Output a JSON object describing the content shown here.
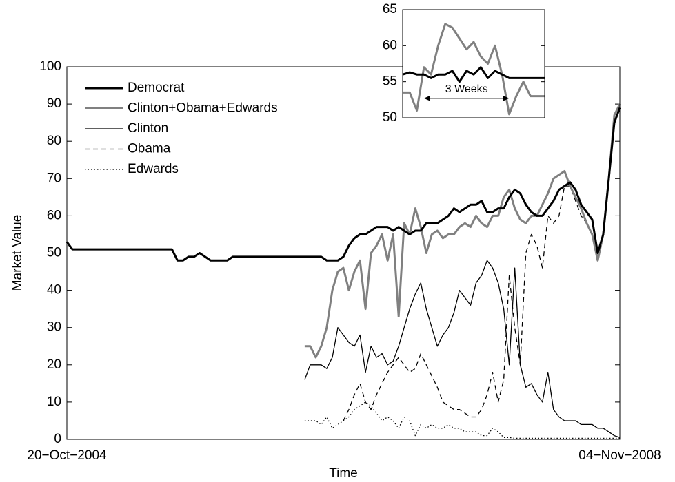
{
  "chart_data": [
    {
      "type": "line",
      "xlabel": "Time",
      "ylabel": "Market Value",
      "x": [
        0,
        1,
        2,
        3,
        4,
        5,
        6,
        7,
        8,
        9,
        10,
        11,
        12,
        13,
        14,
        15,
        16,
        17,
        18,
        19,
        20,
        21,
        22,
        23,
        24,
        25,
        26,
        27,
        28,
        29,
        30,
        31,
        32,
        33,
        34,
        35,
        36,
        37,
        38,
        39,
        40,
        41,
        42,
        43,
        44,
        45,
        46,
        47,
        48,
        49,
        50,
        51,
        52,
        53,
        54,
        55,
        56,
        57,
        58,
        59,
        60,
        61,
        62,
        63,
        64,
        65,
        66,
        67,
        68,
        69,
        70,
        71,
        72,
        73,
        74,
        75,
        76,
        77,
        78,
        79,
        80,
        81,
        82,
        83,
        84,
        85,
        86,
        87,
        88,
        89,
        90,
        91,
        92,
        93,
        94,
        95,
        96,
        97,
        98,
        99,
        100
      ],
      "xlim": [
        0,
        100
      ],
      "xticks": [
        {
          "value": 0,
          "label": "20−Oct−2004"
        },
        {
          "value": 100,
          "label": "04−Nov−2008"
        }
      ],
      "ylim": [
        0,
        100
      ],
      "yticks": [
        0,
        10,
        20,
        30,
        40,
        50,
        60,
        70,
        80,
        90,
        100
      ],
      "legend": "upper left",
      "series": [
        {
          "name": "Democrat",
          "color": "#000000",
          "linestyle": "solid",
          "values": [
            53,
            51,
            51,
            51,
            51,
            51,
            51,
            51,
            51,
            51,
            51,
            51,
            51,
            51,
            51,
            51,
            51,
            51,
            51,
            51,
            48,
            48,
            49,
            49,
            50,
            49,
            48,
            48,
            48,
            48,
            49,
            49,
            49,
            49,
            49,
            49,
            49,
            49,
            49,
            49,
            49,
            49,
            49,
            49,
            49,
            49,
            49,
            48,
            48,
            48,
            49,
            52,
            54,
            55,
            55,
            56,
            57,
            57,
            57,
            56,
            57,
            56,
            55,
            56,
            56,
            58,
            58,
            58,
            59,
            60,
            62,
            61,
            62,
            63,
            63,
            64,
            61,
            61,
            62,
            62,
            65,
            67,
            66,
            63,
            61,
            60,
            60,
            62,
            64,
            67,
            68,
            69,
            67,
            63,
            61,
            59,
            50,
            55,
            70,
            85,
            89
          ]
        },
        {
          "name": "Clinton+Obama+Edwards",
          "color": "#808080",
          "linestyle": "solid",
          "values": [
            null,
            null,
            null,
            null,
            null,
            null,
            null,
            null,
            null,
            null,
            null,
            null,
            null,
            null,
            null,
            null,
            null,
            null,
            null,
            null,
            null,
            null,
            null,
            null,
            null,
            null,
            null,
            null,
            null,
            null,
            null,
            null,
            null,
            null,
            null,
            null,
            null,
            null,
            null,
            null,
            null,
            null,
            null,
            25,
            25,
            22,
            25,
            30,
            40,
            45,
            46,
            40,
            45,
            48,
            35,
            50,
            52,
            55,
            48,
            55,
            33,
            58,
            55,
            62,
            57,
            50,
            55,
            56,
            54,
            55,
            55,
            57,
            58,
            57,
            60,
            58,
            57,
            60,
            60,
            65,
            67,
            62,
            59,
            58,
            60,
            60,
            63,
            66,
            70,
            71,
            72,
            68,
            65,
            62,
            58,
            55,
            48,
            55,
            70,
            87,
            90
          ]
        },
        {
          "name": "Clinton",
          "color": "#000000",
          "linestyle": "solid",
          "values": [
            null,
            null,
            null,
            null,
            null,
            null,
            null,
            null,
            null,
            null,
            null,
            null,
            null,
            null,
            null,
            null,
            null,
            null,
            null,
            null,
            null,
            null,
            null,
            null,
            null,
            null,
            null,
            null,
            null,
            null,
            null,
            null,
            null,
            null,
            null,
            null,
            null,
            null,
            null,
            null,
            null,
            null,
            null,
            16,
            20,
            20,
            20,
            19,
            22,
            30,
            28,
            26,
            25,
            28,
            18,
            25,
            22,
            23,
            20,
            21,
            25,
            30,
            35,
            39,
            42,
            35,
            30,
            25,
            28,
            30,
            34,
            40,
            38,
            36,
            42,
            44,
            48,
            46,
            42,
            35,
            20,
            46,
            20,
            14,
            15,
            12,
            10,
            18,
            8,
            6,
            5,
            5,
            5,
            4,
            4,
            4,
            3,
            3,
            2,
            1,
            0.5
          ]
        },
        {
          "name": "Obama",
          "color": "#000000",
          "linestyle": "dashed",
          "values": [
            null,
            null,
            null,
            null,
            null,
            null,
            null,
            null,
            null,
            null,
            null,
            null,
            null,
            null,
            null,
            null,
            null,
            null,
            null,
            null,
            null,
            null,
            null,
            null,
            null,
            null,
            null,
            null,
            null,
            null,
            null,
            null,
            null,
            null,
            null,
            null,
            null,
            null,
            null,
            null,
            null,
            null,
            null,
            null,
            null,
            null,
            null,
            null,
            null,
            null,
            5,
            8,
            12,
            15,
            10,
            8,
            12,
            15,
            18,
            20,
            22,
            20,
            18,
            19,
            23,
            20,
            17,
            14,
            10,
            9,
            8,
            8,
            7,
            6,
            6,
            8,
            12,
            18,
            10,
            16,
            44,
            30,
            20,
            50,
            55,
            52,
            46,
            60,
            58,
            60,
            68,
            68,
            64,
            60,
            58,
            55,
            49,
            55,
            70,
            85,
            89
          ]
        },
        {
          "name": "Edwards",
          "color": "#000000",
          "linestyle": "dotted",
          "values": [
            null,
            null,
            null,
            null,
            null,
            null,
            null,
            null,
            null,
            null,
            null,
            null,
            null,
            null,
            null,
            null,
            null,
            null,
            null,
            null,
            null,
            null,
            null,
            null,
            null,
            null,
            null,
            null,
            null,
            null,
            null,
            null,
            null,
            null,
            null,
            null,
            null,
            null,
            null,
            null,
            null,
            null,
            null,
            5,
            5,
            5,
            4,
            6,
            3,
            4,
            5,
            6,
            8,
            9,
            10,
            9,
            7,
            5,
            6,
            5,
            3,
            6,
            5,
            1,
            4,
            3,
            4,
            3,
            3,
            4,
            3,
            3,
            2,
            2,
            2,
            1,
            1,
            3,
            2,
            0.5,
            0.5,
            0.3,
            0.3,
            0.3,
            0.3,
            0.3,
            0.3,
            0.3,
            0.3,
            0.3,
            0.3,
            0.3,
            0.3,
            0.3,
            0.3,
            0.3,
            0.3,
            0.3,
            0.3,
            0.3,
            0.3
          ]
        }
      ]
    },
    {
      "type": "line",
      "annotation": "3 Weeks",
      "x": [
        0,
        1,
        2,
        3,
        4,
        5,
        6,
        7,
        8,
        9,
        10,
        11,
        12,
        13,
        14,
        15,
        16,
        17,
        18,
        19,
        20
      ],
      "xlim": [
        0,
        20
      ],
      "ylim": [
        50,
        65
      ],
      "yticks": [
        50,
        55,
        60,
        65
      ],
      "series": [
        {
          "color": "#000000",
          "linestyle": "solid",
          "values": [
            56,
            56.3,
            56,
            56,
            55.5,
            56,
            56,
            56.5,
            55,
            56.5,
            56,
            57,
            55.5,
            56.5,
            56,
            55.5,
            55.5,
            55.5,
            55.5,
            55.5,
            55.5
          ]
        },
        {
          "color": "#808080",
          "linestyle": "solid",
          "values": [
            53.5,
            53.5,
            51,
            57,
            56,
            60,
            63,
            62.5,
            61,
            59.5,
            60.5,
            58.5,
            57.5,
            60,
            56,
            50.5,
            53,
            55,
            53,
            53,
            53
          ]
        }
      ]
    }
  ]
}
